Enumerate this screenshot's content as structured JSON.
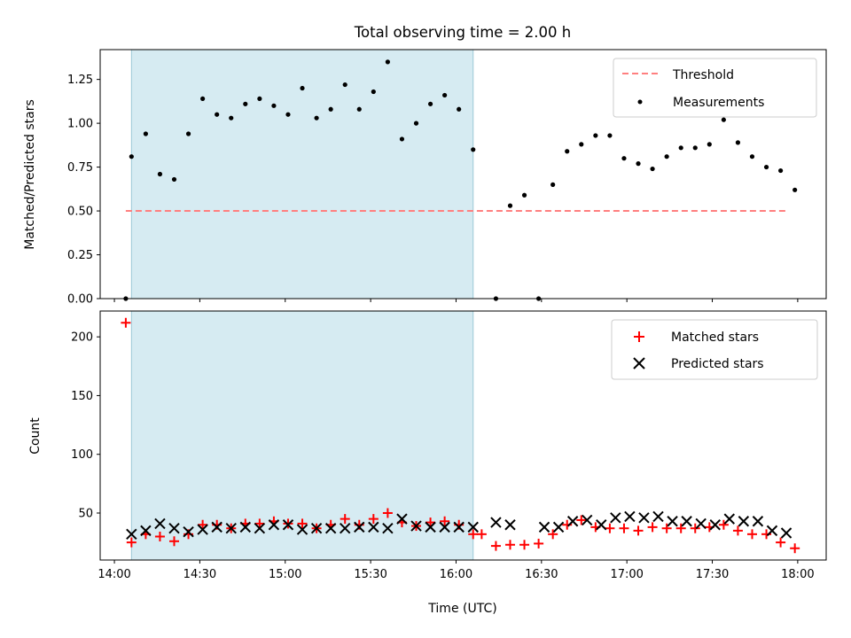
{
  "chart_data": [
    {
      "type": "scatter",
      "title": "Total observing time = 2.00 h",
      "xlabel": "",
      "ylabel": "Matched/Predicted stars",
      "xlim": [
        "13:55",
        "18:10"
      ],
      "ylim": [
        0,
        1.42
      ],
      "yticks": [
        "0.00",
        "0.25",
        "0.50",
        "0.75",
        "1.00",
        "1.25"
      ],
      "grid": false,
      "legend": "top-right",
      "shaded_interval": [
        "14:06",
        "16:06"
      ],
      "series": [
        {
          "name": "Threshold",
          "kind": "dashed-line",
          "color": "#ff7f7f",
          "x": [
            "14:04",
            "17:56"
          ],
          "y": [
            0.5,
            0.5
          ]
        },
        {
          "name": "Measurements",
          "kind": "points",
          "color": "#000000",
          "x": [
            "14:04",
            "14:06",
            "14:11",
            "14:16",
            "14:21",
            "14:26",
            "14:31",
            "14:36",
            "14:41",
            "14:46",
            "14:51",
            "14:56",
            "15:01",
            "15:06",
            "15:11",
            "15:16",
            "15:21",
            "15:26",
            "15:31",
            "15:36",
            "15:41",
            "15:46",
            "15:51",
            "15:56",
            "16:01",
            "16:06",
            "16:14",
            "16:19",
            "16:24",
            "16:29",
            "16:34",
            "16:39",
            "16:44",
            "16:49",
            "16:54",
            "16:59",
            "17:04",
            "17:09",
            "17:14",
            "17:19",
            "17:24",
            "17:29",
            "17:34",
            "17:39",
            "17:44",
            "17:49",
            "17:54",
            "17:59"
          ],
          "y": [
            0.0,
            0.81,
            0.94,
            0.71,
            0.68,
            0.94,
            1.14,
            1.05,
            1.03,
            1.11,
            1.14,
            1.1,
            1.05,
            1.2,
            1.03,
            1.08,
            1.22,
            1.08,
            1.18,
            1.35,
            0.91,
            1.0,
            1.11,
            1.16,
            1.08,
            0.85,
            0.0,
            0.53,
            0.59,
            0.0,
            0.65,
            0.84,
            0.88,
            0.93,
            0.93,
            0.8,
            0.77,
            0.74,
            0.81,
            0.86,
            0.86,
            0.88,
            1.02,
            0.89,
            0.81,
            0.75,
            0.73,
            0.62
          ]
        }
      ]
    },
    {
      "type": "scatter",
      "title": "",
      "xlabel": "Time (UTC)",
      "ylabel": "Count",
      "xlim": [
        "13:55",
        "18:10"
      ],
      "ylim": [
        10,
        222
      ],
      "xticks": [
        "14:00",
        "14:30",
        "15:00",
        "15:30",
        "16:00",
        "16:30",
        "17:00",
        "17:30",
        "18:00"
      ],
      "yticks": [
        "50",
        "100",
        "150",
        "200"
      ],
      "grid": false,
      "legend": "top-right",
      "shaded_interval": [
        "14:06",
        "16:06"
      ],
      "series": [
        {
          "name": "Matched stars",
          "marker": "plus",
          "color": "#ff0000",
          "x": [
            "14:04",
            "14:06",
            "14:11",
            "14:16",
            "14:21",
            "14:26",
            "14:31",
            "14:36",
            "14:41",
            "14:46",
            "14:51",
            "14:56",
            "15:01",
            "15:06",
            "15:11",
            "15:16",
            "15:21",
            "15:26",
            "15:31",
            "15:36",
            "15:41",
            "15:46",
            "15:51",
            "15:56",
            "16:01",
            "16:06",
            "16:09",
            "16:14",
            "16:19",
            "16:24",
            "16:29",
            "16:34",
            "16:39",
            "16:44",
            "16:49",
            "16:54",
            "16:59",
            "17:04",
            "17:09",
            "17:14",
            "17:19",
            "17:24",
            "17:29",
            "17:34",
            "17:39",
            "17:44",
            "17:49",
            "17:54",
            "17:59"
          ],
          "y": [
            212,
            25,
            32,
            30,
            26,
            32,
            40,
            40,
            37,
            41,
            41,
            43,
            41,
            41,
            37,
            40,
            45,
            40,
            45,
            50,
            42,
            39,
            42,
            43,
            40,
            32,
            32,
            22,
            23,
            23,
            24,
            32,
            40,
            44,
            38,
            37,
            37,
            35,
            38,
            37,
            37,
            37,
            38,
            40,
            35,
            32,
            32,
            25,
            20
          ]
        },
        {
          "name": "Predicted stars",
          "marker": "x",
          "color": "#000000",
          "x": [
            "14:06",
            "14:11",
            "14:16",
            "14:21",
            "14:26",
            "14:31",
            "14:36",
            "14:41",
            "14:46",
            "14:51",
            "14:56",
            "15:01",
            "15:06",
            "15:11",
            "15:16",
            "15:21",
            "15:26",
            "15:31",
            "15:36",
            "15:41",
            "15:46",
            "15:51",
            "15:56",
            "16:01",
            "16:06",
            "16:14",
            "16:19",
            "16:31",
            "16:36",
            "16:41",
            "16:46",
            "16:51",
            "16:56",
            "17:01",
            "17:06",
            "17:11",
            "17:16",
            "17:21",
            "17:26",
            "17:31",
            "17:36",
            "17:41",
            "17:46",
            "17:51",
            "17:56"
          ],
          "y": [
            32,
            35,
            41,
            37,
            34,
            36,
            38,
            37,
            38,
            37,
            40,
            40,
            36,
            37,
            37,
            37,
            38,
            38,
            37,
            45,
            39,
            38,
            38,
            38,
            38,
            42,
            40,
            38,
            38,
            43,
            44,
            40,
            46,
            47,
            46,
            47,
            43,
            43,
            41,
            40,
            45,
            43,
            43,
            35,
            33
          ]
        }
      ]
    }
  ]
}
